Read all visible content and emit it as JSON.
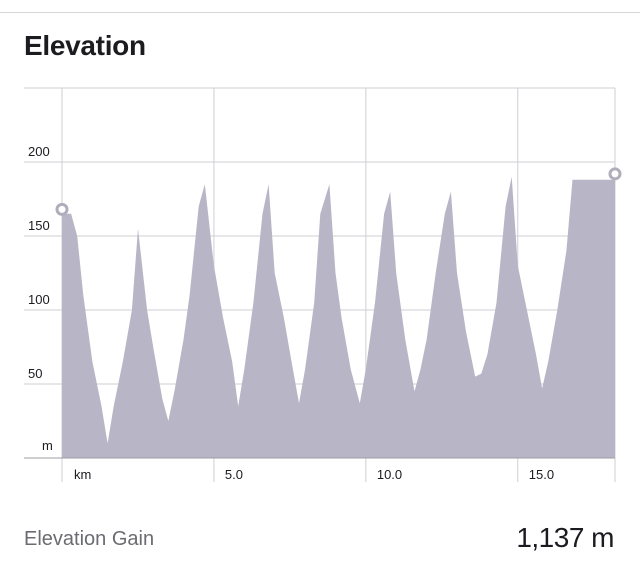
{
  "header": {
    "title": "Elevation"
  },
  "stats": {
    "elevation_gain_label": "Elevation Gain",
    "elevation_gain_value": "1,137 m"
  },
  "colors": {
    "area_fill": "#b8b6c6",
    "grid": "#cfcfd4",
    "axis": "#9c9ca3",
    "marker_stroke": "#b0aebb",
    "text": "#1b1b20",
    "muted_text": "#6b6b72"
  },
  "chart_data": {
    "type": "area",
    "title": "Elevation",
    "xlabel": "km",
    "ylabel": "m",
    "xlim": [
      0,
      18.2
    ],
    "ylim": [
      0,
      250
    ],
    "x_ticks": [
      5.0,
      10.0,
      15.0
    ],
    "x_tick_labels": [
      "5.0",
      "10.0",
      "15.0"
    ],
    "y_ticks": [
      50,
      100,
      150,
      200
    ],
    "y_tick_labels": [
      "50",
      "100",
      "150",
      "200"
    ],
    "grid": true,
    "series": [
      {
        "x": [
          0.0,
          0.3,
          0.5,
          0.7,
          1.0,
          1.3,
          1.5,
          1.7,
          2.0,
          2.3,
          2.5,
          2.8,
          3.0,
          3.3,
          3.5,
          3.7,
          4.0,
          4.2,
          4.5,
          4.7,
          5.0,
          5.3,
          5.6,
          5.8,
          6.0,
          6.3,
          6.6,
          6.8,
          7.0,
          7.3,
          7.6,
          7.8,
          8.0,
          8.3,
          8.5,
          8.8,
          9.0,
          9.2,
          9.5,
          9.8,
          10.0,
          10.3,
          10.6,
          10.8,
          11.0,
          11.3,
          11.6,
          11.8,
          12.0,
          12.3,
          12.6,
          12.8,
          13.0,
          13.3,
          13.6,
          13.8,
          14.0,
          14.3,
          14.6,
          14.8,
          15.0,
          15.3,
          15.6,
          15.8,
          16.0,
          16.3,
          16.6,
          16.8,
          17.0,
          17.3,
          17.6,
          17.9,
          18.2
        ],
        "y": [
          165,
          165,
          150,
          110,
          65,
          35,
          10,
          35,
          65,
          100,
          155,
          100,
          75,
          40,
          25,
          45,
          80,
          110,
          170,
          185,
          130,
          95,
          65,
          35,
          60,
          105,
          165,
          185,
          125,
          95,
          60,
          37,
          60,
          105,
          165,
          185,
          125,
          95,
          60,
          37,
          60,
          105,
          165,
          180,
          125,
          80,
          45,
          60,
          80,
          125,
          165,
          180,
          125,
          85,
          55,
          57,
          70,
          105,
          170,
          190,
          130,
          100,
          70,
          47,
          65,
          100,
          140,
          188,
          188,
          188,
          188,
          188,
          188
        ]
      }
    ],
    "markers": [
      {
        "x": 0.0,
        "y": 168
      },
      {
        "x": 18.2,
        "y": 192
      }
    ]
  }
}
